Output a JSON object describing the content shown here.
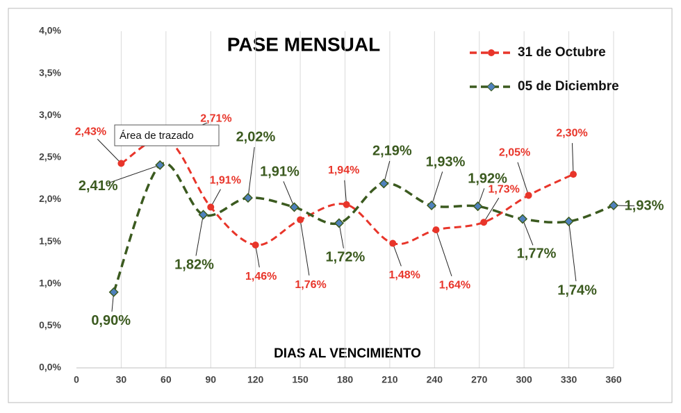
{
  "chart_data": {
    "type": "line",
    "title": "PASE MENSUAL",
    "x_label": "DIAS AL VENCIMIENTO",
    "tooltip": "Área de trazado",
    "xlim": [
      0,
      360
    ],
    "xticks": [
      0,
      30,
      60,
      90,
      120,
      150,
      180,
      210,
      240,
      270,
      300,
      330,
      360
    ],
    "ylim": [
      0,
      4
    ],
    "yticks": [
      {
        "value": 0,
        "label": "0,0%"
      },
      {
        "value": 0.5,
        "label": "0,5%"
      },
      {
        "value": 1,
        "label": "1,0%"
      },
      {
        "value": 1.5,
        "label": "1,5%"
      },
      {
        "value": 2,
        "label": "2,0%"
      },
      {
        "value": 2.5,
        "label": "2,5%"
      },
      {
        "value": 3,
        "label": "3,0%"
      },
      {
        "value": 3.5,
        "label": "3,5%"
      },
      {
        "value": 4,
        "label": "4,0%"
      }
    ],
    "grid": "x",
    "legend": "top-right",
    "series": [
      {
        "name": "31 de Octubre",
        "color": "#e8352a",
        "x": [
          30,
          61,
          90,
          120,
          150,
          181,
          212,
          241,
          273,
          303,
          333
        ],
        "values": [
          2.43,
          2.71,
          1.91,
          1.46,
          1.76,
          1.94,
          1.48,
          1.64,
          1.73,
          2.05,
          2.3
        ],
        "value_labels": [
          "2,43%",
          "2,71%",
          "1,91%",
          "1,46%",
          "1,76%",
          "1,94%",
          "1,48%",
          "1,64%",
          "1,73%",
          "2,05%",
          "2,30%"
        ]
      },
      {
        "name": "05 de Diciembre",
        "color": "#3b5a1f",
        "x": [
          25,
          56,
          85,
          115,
          146,
          176,
          206,
          238,
          269,
          299,
          330,
          360
        ],
        "values": [
          0.9,
          2.41,
          1.82,
          2.02,
          1.91,
          1.72,
          2.19,
          1.93,
          1.92,
          1.77,
          1.74,
          1.93
        ],
        "value_labels": [
          "0,90%",
          "2,41%",
          "1,82%",
          "2,02%",
          "1,91%",
          "1,72%",
          "2,19%",
          "1,93%",
          "1,92%",
          "1,77%",
          "1,74%",
          "1,93%"
        ]
      }
    ]
  }
}
